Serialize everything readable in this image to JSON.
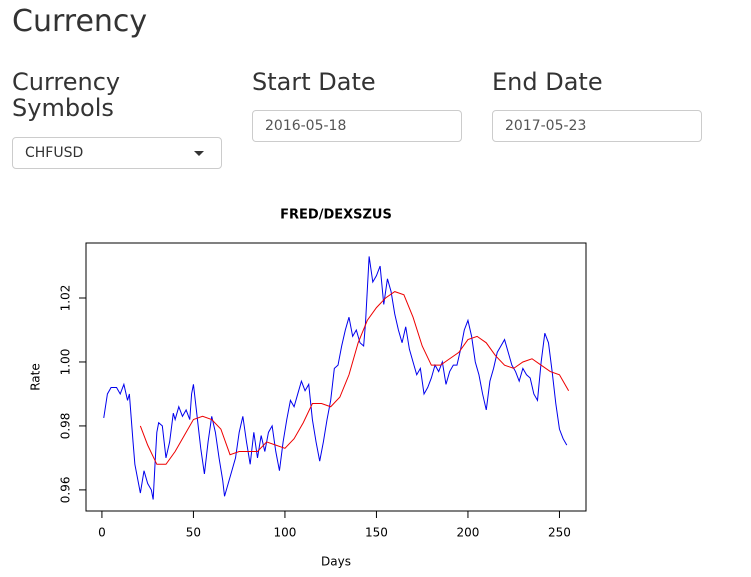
{
  "header": {
    "title": "Currency"
  },
  "inputs": [
    {
      "label": "Currency Symbols",
      "value": "CHFUSD"
    },
    {
      "label": "Start Date",
      "value": "2016-05-18"
    },
    {
      "label": "End Date",
      "value": "2017-05-23"
    }
  ],
  "chart_data": {
    "type": "line",
    "title": "FRED/DEXSZUS",
    "x_label": "Days",
    "y_label": "Rate",
    "xlim": [
      -8.7,
      264.5
    ],
    "ylim": [
      0.9534,
      1.0372
    ],
    "xticks": [
      0,
      50,
      100,
      150,
      200,
      250
    ],
    "yticks": [
      0.96,
      0.98,
      {
        "value": 1,
        "label": "1.00"
      },
      1.02
    ],
    "series": [
      {
        "color": "#0000ee",
        "x": [
          1,
          3,
          5,
          8,
          10,
          12,
          14,
          15,
          17,
          18,
          20,
          21,
          23,
          25,
          27,
          28,
          29,
          30,
          31,
          33,
          35,
          37,
          39,
          40,
          42,
          44,
          46,
          48,
          49,
          50,
          52,
          54,
          56,
          58,
          60,
          62,
          64,
          66,
          67,
          69,
          71,
          73,
          75,
          77,
          79,
          81,
          83,
          85,
          87,
          89,
          91,
          93,
          95,
          97,
          99,
          101,
          103,
          105,
          107,
          109,
          111,
          113,
          115,
          117,
          119,
          121,
          123,
          125,
          127,
          129,
          131,
          133,
          135,
          137,
          139,
          141,
          143,
          144,
          146,
          148,
          150,
          152,
          154,
          156,
          158,
          160,
          162,
          164,
          166,
          168,
          170,
          172,
          174,
          176,
          178,
          180,
          182,
          184,
          186,
          188,
          190,
          192,
          194,
          196,
          198,
          200,
          202,
          204,
          206,
          208,
          210,
          212,
          214,
          216,
          218,
          220,
          222,
          224,
          226,
          228,
          230,
          232,
          234,
          236,
          238,
          240,
          242,
          244,
          246,
          248,
          250,
          252,
          254
        ],
        "values": [
          0.9825,
          0.99,
          0.992,
          0.992,
          0.99,
          0.993,
          0.988,
          0.99,
          0.975,
          0.968,
          0.962,
          0.959,
          0.966,
          0.962,
          0.96,
          0.957,
          0.968,
          0.978,
          0.981,
          0.98,
          0.97,
          0.975,
          0.984,
          0.982,
          0.986,
          0.983,
          0.985,
          0.982,
          0.99,
          0.993,
          0.983,
          0.973,
          0.965,
          0.975,
          0.983,
          0.978,
          0.97,
          0.963,
          0.958,
          0.962,
          0.966,
          0.97,
          0.978,
          0.983,
          0.975,
          0.968,
          0.978,
          0.97,
          0.977,
          0.972,
          0.978,
          0.98,
          0.972,
          0.966,
          0.975,
          0.982,
          0.988,
          0.986,
          0.99,
          0.994,
          0.991,
          0.993,
          0.982,
          0.975,
          0.969,
          0.975,
          0.982,
          0.988,
          0.998,
          0.999,
          1.005,
          1.01,
          1.014,
          1.008,
          1.01,
          1.006,
          1.005,
          1.012,
          1.033,
          1.025,
          1.027,
          1.03,
          1.018,
          1.026,
          1.022,
          1.015,
          1.01,
          1.006,
          1.011,
          1.004,
          1.0,
          0.996,
          0.998,
          0.99,
          0.992,
          0.995,
          0.999,
          0.997,
          1.0,
          0.993,
          0.997,
          0.999,
          0.999,
          1.004,
          1.01,
          1.013,
          1.008,
          1.0,
          0.996,
          0.99,
          0.985,
          0.994,
          0.998,
          1.003,
          1.005,
          1.007,
          1.003,
          0.999,
          0.997,
          0.994,
          0.998,
          0.996,
          0.995,
          0.99,
          0.988,
          1.0,
          1.009,
          1.006,
          0.997,
          0.987,
          0.979,
          0.976,
          0.974
        ]
      },
      {
        "color": "#ee0000",
        "x": [
          21,
          25,
          30,
          35,
          40,
          45,
          50,
          55,
          60,
          65,
          70,
          75,
          80,
          85,
          90,
          95,
          100,
          105,
          110,
          115,
          120,
          125,
          130,
          135,
          140,
          145,
          150,
          155,
          160,
          165,
          170,
          175,
          180,
          185,
          190,
          195,
          200,
          205,
          210,
          215,
          220,
          225,
          230,
          235,
          240,
          245,
          250,
          255
        ],
        "values": [
          0.98,
          0.974,
          0.968,
          0.968,
          0.972,
          0.977,
          0.982,
          0.983,
          0.982,
          0.979,
          0.971,
          0.972,
          0.972,
          0.972,
          0.975,
          0.974,
          0.973,
          0.976,
          0.981,
          0.987,
          0.987,
          0.986,
          0.989,
          0.996,
          1.006,
          1.013,
          1.017,
          1.02,
          1.022,
          1.021,
          1.014,
          1.005,
          0.999,
          0.999,
          1.001,
          1.003,
          1.007,
          1.008,
          1.006,
          1.002,
          0.999,
          0.998,
          1.0,
          1.001,
          0.999,
          0.997,
          0.996,
          0.991
        ]
      }
    ]
  }
}
